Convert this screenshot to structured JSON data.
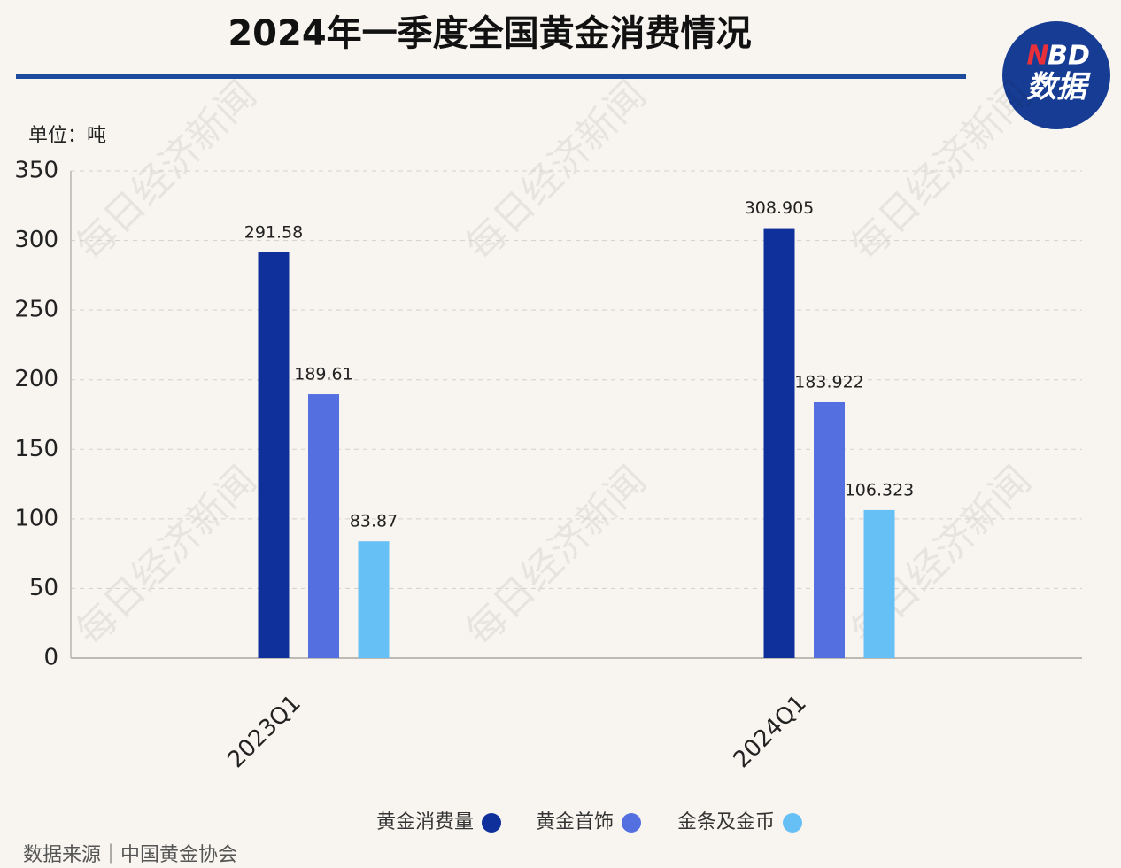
{
  "chart_data": {
    "type": "bar",
    "title": "2024年一季度全国黄金消费情况",
    "unit_label": "单位：吨",
    "source": "数据来源｜中国黄金协会",
    "watermark": "每日经济新闻",
    "logo": {
      "first": "N",
      "rest": "BD",
      "sub": "数据"
    },
    "categories": [
      "2023Q1",
      "2024Q1"
    ],
    "series": [
      {
        "name": "黄金消费量",
        "color": "#0f2f9b",
        "values": [
          291.58,
          308.905
        ]
      },
      {
        "name": "黄金首饰",
        "color": "#5470e0",
        "values": [
          189.61,
          183.922
        ]
      },
      {
        "name": "金条及金币",
        "color": "#66bff5",
        "values": [
          83.87,
          106.323
        ]
      }
    ],
    "ylim": [
      0,
      350
    ],
    "yticks": [
      0,
      50,
      100,
      150,
      200,
      250,
      300,
      350
    ],
    "grid": true
  }
}
